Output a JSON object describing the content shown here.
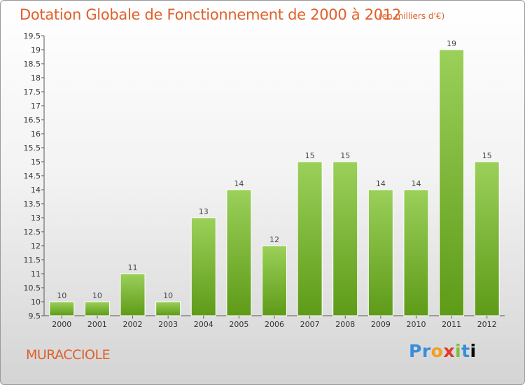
{
  "title": "Dotation Globale de Fonctionnement de 2000 à 2012",
  "subtitle": "(en milliers d'€)",
  "commune": "MURACCIOLE",
  "logo": [
    "P",
    "r",
    "o",
    "x",
    "i",
    "t",
    "i"
  ],
  "colors": {
    "accent": "#e0602a",
    "bar_top": "#9bd05a",
    "bar_bottom": "#5e9b18"
  },
  "chart_data": {
    "type": "bar",
    "categories": [
      "2000",
      "2001",
      "2002",
      "2003",
      "2004",
      "2005",
      "2006",
      "2007",
      "2008",
      "2009",
      "2010",
      "2011",
      "2012"
    ],
    "values": [
      10,
      10,
      11,
      10,
      13,
      14,
      12,
      15,
      15,
      14,
      14,
      19,
      15
    ],
    "ylim": [
      9.5,
      19.5
    ],
    "yticks": [
      "9.5",
      "10",
      "10.5",
      "11",
      "11.5",
      "12",
      "12.5",
      "13",
      "13.5",
      "14",
      "14.5",
      "15",
      "15.5",
      "16",
      "16.5",
      "17",
      "17.5",
      "18",
      "18.5",
      "19",
      "19.5"
    ],
    "grid": false,
    "title": "Dotation Globale de Fonctionnement de 2000 à 2012",
    "xlabel": "",
    "ylabel": ""
  }
}
